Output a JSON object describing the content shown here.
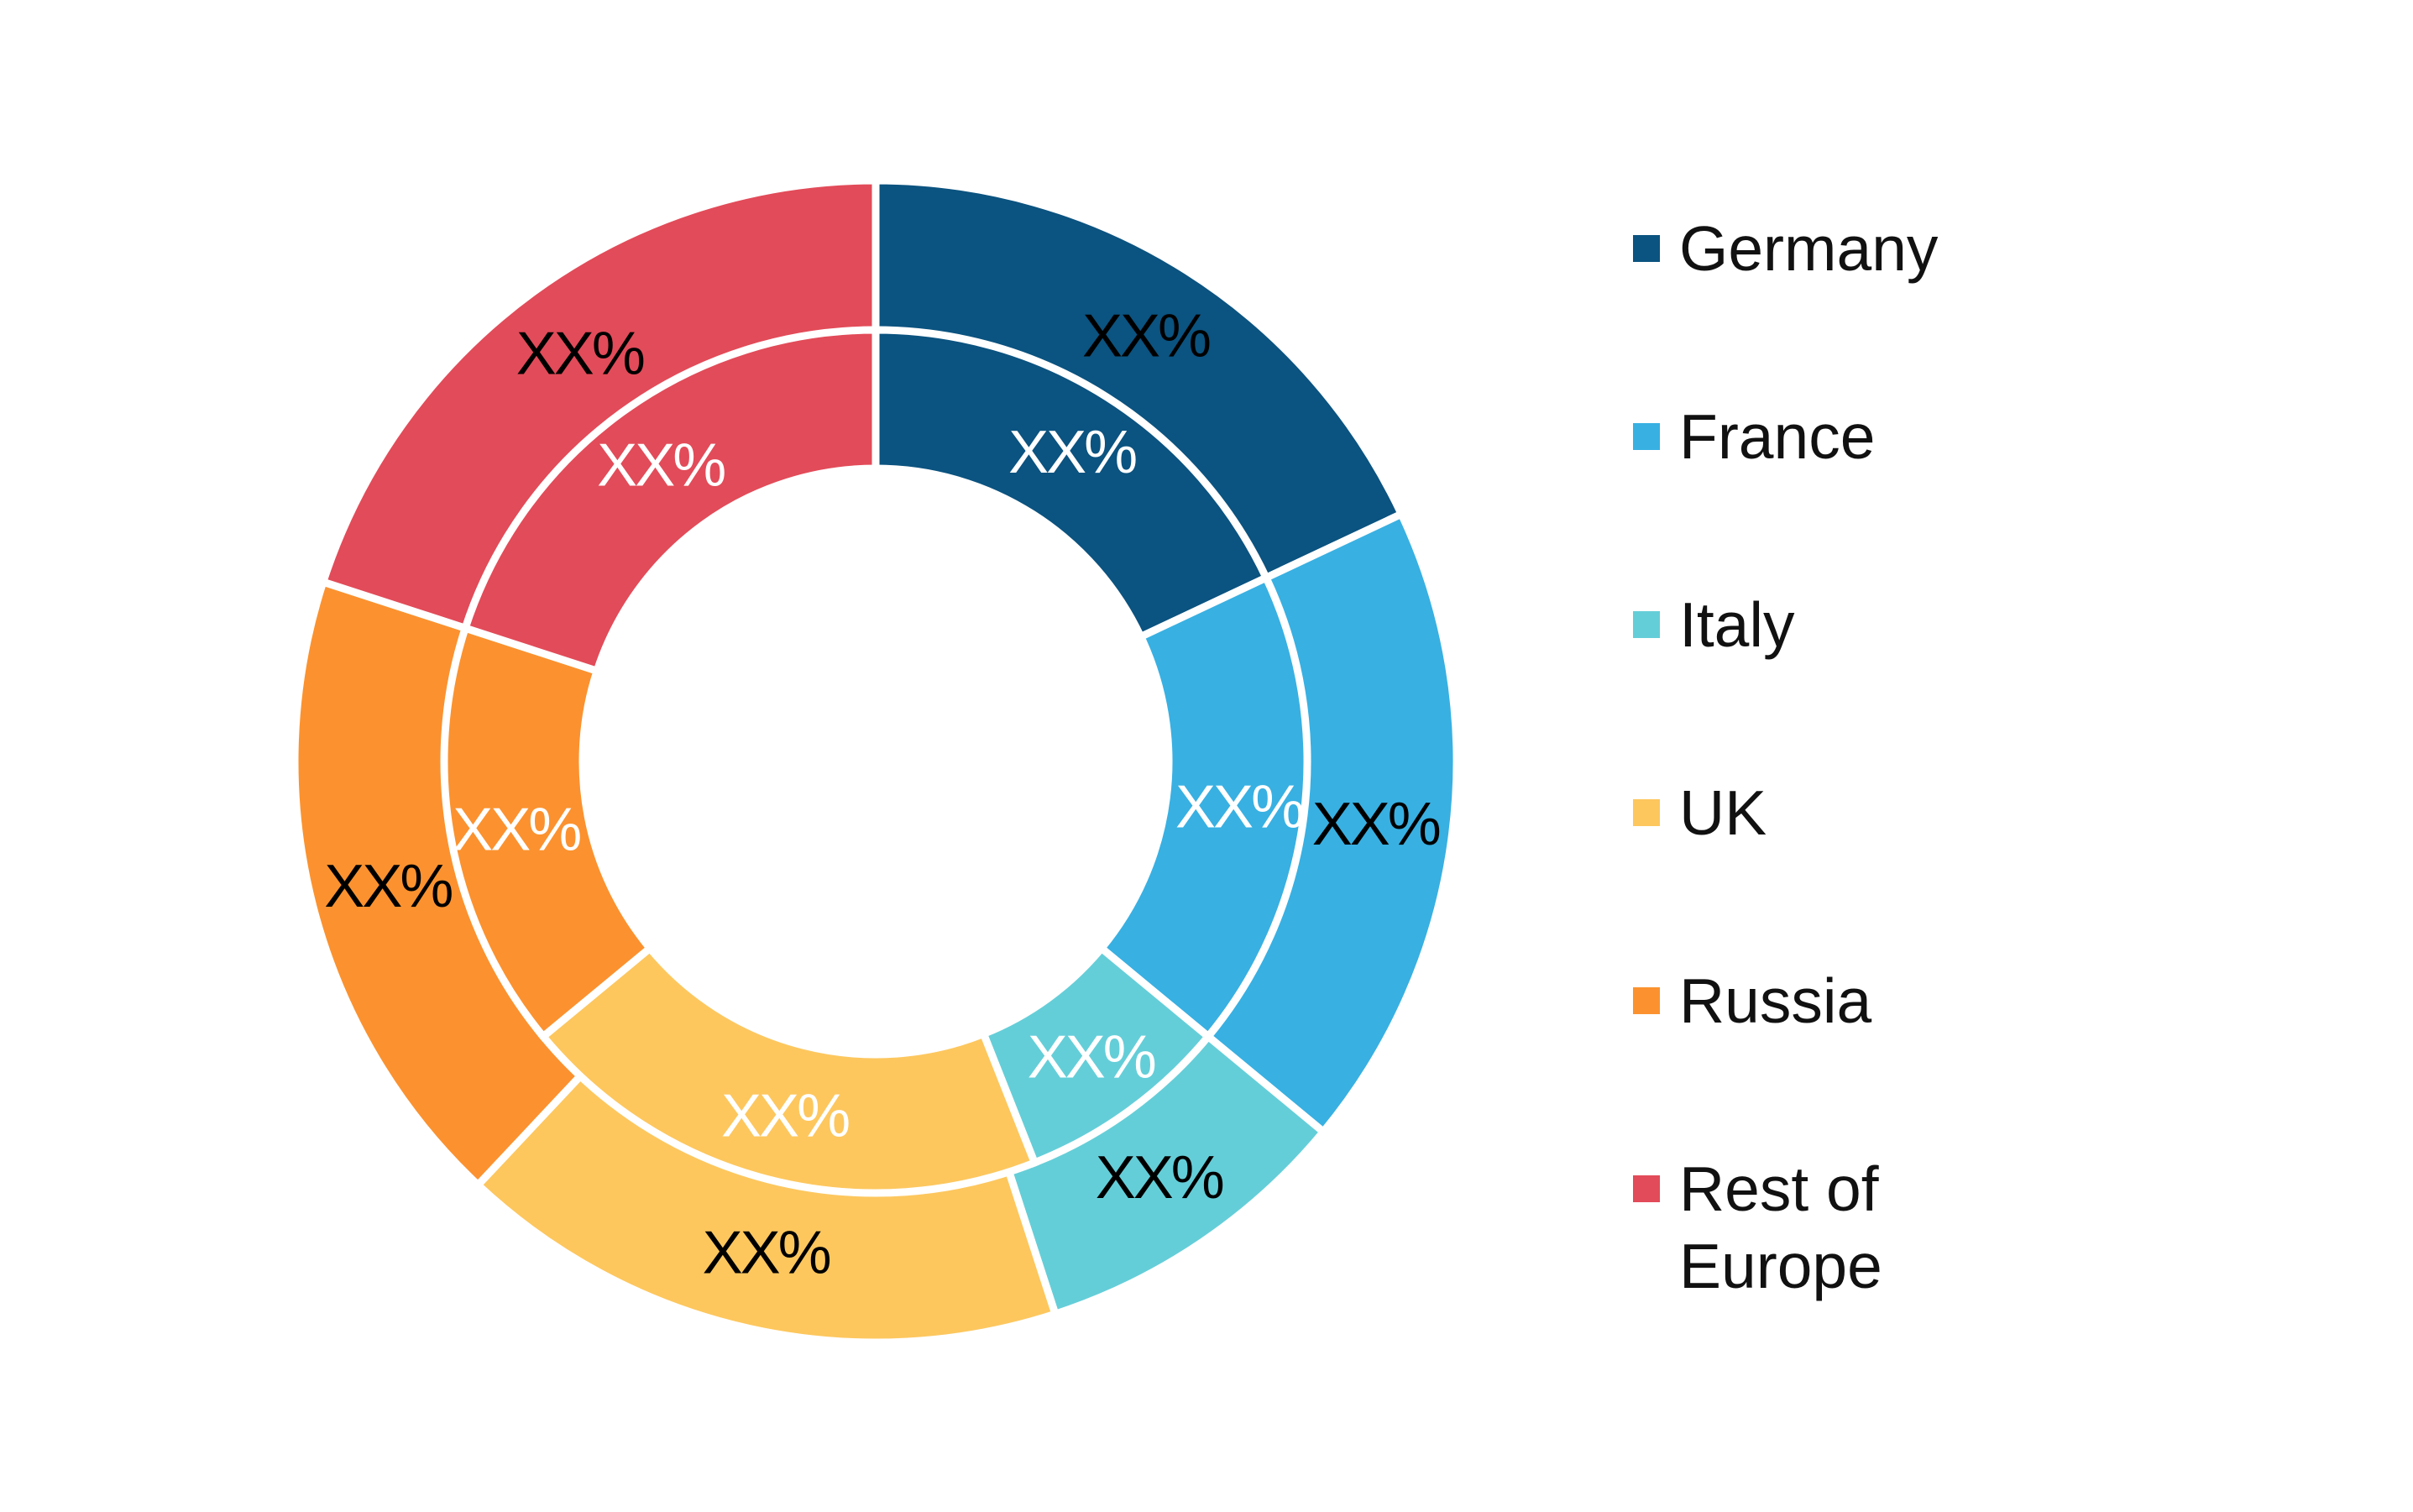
{
  "chart_data": {
    "type": "pie",
    "variant": "donut",
    "categories": [
      "Germany",
      "France",
      "Italy",
      "UK",
      "Russia",
      "Rest of Europe"
    ],
    "colors": [
      "#0b5380",
      "#38b0e2",
      "#64ced8",
      "#fdc75e",
      "#fb922f",
      "#e24b59"
    ],
    "series": [
      {
        "ring": "outer",
        "values": [
          18,
          18,
          9,
          17,
          18,
          20
        ],
        "labels": [
          "XX%",
          "XX%",
          "XX%",
          "XX%",
          "XX%",
          "XX%"
        ]
      },
      {
        "ring": "inner",
        "values": [
          18,
          18,
          8,
          20,
          16,
          20
        ],
        "labels": [
          "XX%",
          "XX%",
          "XX%",
          "XX%",
          "XX%",
          "XX%"
        ]
      }
    ],
    "legend": {
      "position": "right",
      "entries": [
        "Germany",
        "France",
        "Italy",
        "UK",
        "Russia",
        "Rest of\nEurope"
      ]
    },
    "outer_label_color": "#000000",
    "inner_label_color": "#ffffff"
  }
}
